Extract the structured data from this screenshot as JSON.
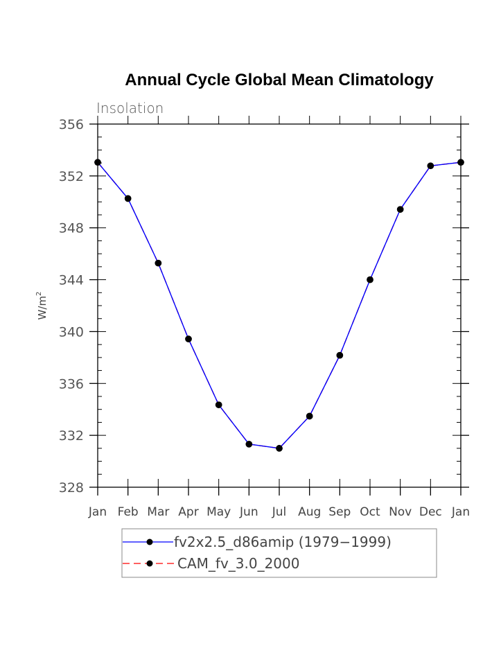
{
  "chart_data": {
    "type": "line",
    "title": "Annual Cycle Global Mean Climatology",
    "subtitle": "Insolation",
    "xlabel": "",
    "ylabel": "W/m",
    "ylabel_superscript": "2",
    "categories": [
      "Jan",
      "Feb",
      "Mar",
      "Apr",
      "May",
      "Jun",
      "Jul",
      "Aug",
      "Sep",
      "Oct",
      "Nov",
      "Dec",
      "Jan"
    ],
    "ylim": [
      328,
      356
    ],
    "yticks": [
      328,
      332,
      336,
      340,
      344,
      348,
      352,
      356
    ],
    "yminor_step": 1,
    "grid": false,
    "legend_position": "bottom",
    "series": [
      {
        "name": "fv2x2.5_d86amip (1979−1999)",
        "color": "#0000ff",
        "dash": "solid",
        "marker": "filled-circle",
        "values": [
          353.05,
          350.26,
          345.28,
          339.43,
          334.35,
          331.32,
          331.0,
          333.48,
          338.17,
          344.0,
          349.42,
          352.78,
          353.05
        ]
      },
      {
        "name": "CAM_fv_3.0_2000",
        "color": "#ff0000",
        "dash": "dashed",
        "marker": "filled-circle",
        "values": [
          353.05,
          350.26,
          345.28,
          339.43,
          334.35,
          331.32,
          331.0,
          333.48,
          338.17,
          344.0,
          349.42,
          352.78,
          353.05
        ]
      }
    ]
  }
}
